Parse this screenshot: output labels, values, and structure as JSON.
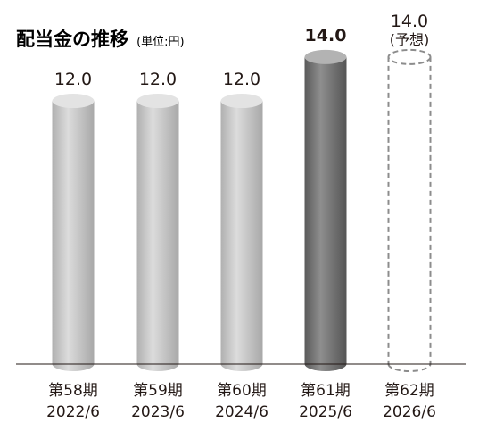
{
  "chart_data": {
    "type": "bar",
    "title": "配当金の推移",
    "unit": "(単位:円)",
    "categories": [
      {
        "period": "第58期",
        "date": "2022/6"
      },
      {
        "period": "第59期",
        "date": "2023/6"
      },
      {
        "period": "第60期",
        "date": "2024/6"
      },
      {
        "period": "第61期",
        "date": "2025/6"
      },
      {
        "period": "第62期",
        "date": "2026/6"
      }
    ],
    "values": [
      12.0,
      12.0,
      12.0,
      14.0,
      14.0
    ],
    "value_labels": [
      "12.0",
      "12.0",
      "12.0",
      "14.0",
      "14.0"
    ],
    "label_bold": [
      false,
      false,
      false,
      true,
      false
    ],
    "bar_style": [
      "light",
      "light",
      "light",
      "dark",
      "forecast"
    ],
    "forecast_note": "(予想)",
    "ylim": [
      0,
      16.6
    ],
    "grid": false,
    "legend": "none",
    "colors": {
      "light_body": "#c4c4c4",
      "light_top": "#e3e3e3",
      "dark_body": "#767676",
      "dark_top": "#b3b3b3",
      "forecast_stroke": "#8c8c8c",
      "baseline": "#231815",
      "text": "#231815"
    }
  }
}
